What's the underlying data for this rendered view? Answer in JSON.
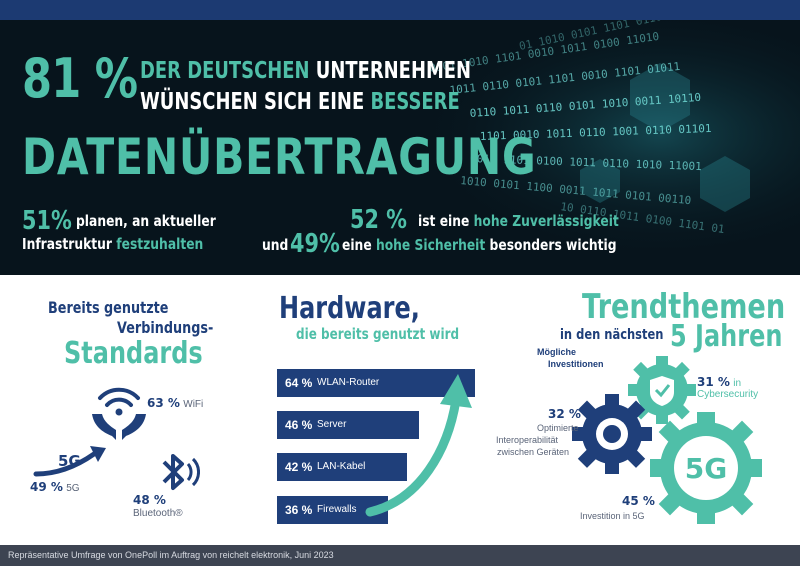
{
  "headline": {
    "percent": "81 %",
    "line1_a": "DER DEUTSCHEN",
    "line1_b": "UNTERNEHMEN",
    "line2_a": "WÜNSCHEN SICH EINE",
    "line2_b": "BESSERE",
    "line3": "DATENÜBERTRAGUNG"
  },
  "hero_stats": {
    "left": {
      "percent": "51%",
      "t1": "planen, an aktueller",
      "t2a": "Infrastruktur",
      "t2b": "festzuhalten"
    },
    "right": {
      "percent1": "52 %",
      "t1a": "ist eine",
      "t1b": "hohe Zuverlässigkeit",
      "and": "und",
      "percent2": "49%",
      "t2a": "eine",
      "t2b": "hohe Sicherheit",
      "t2c": "besonders wichtig"
    }
  },
  "standards": {
    "title1": "Bereits genutzte",
    "title2": "Verbindungs-",
    "title3": "Standards",
    "wifi": {
      "percent": "63 %",
      "label": "WiFi"
    },
    "fiveg": {
      "percent": "49 %",
      "label": "5G",
      "icon_text": "5G"
    },
    "bluetooth": {
      "percent": "48 %",
      "label": "Bluetooth®"
    }
  },
  "hardware": {
    "title": "Hardware,",
    "subtitle": "die bereits genutzt wird",
    "items": [
      {
        "percent": "64 %",
        "label": "WLAN-Router",
        "value": 64
      },
      {
        "percent": "46 %",
        "label": "Server",
        "value": 46
      },
      {
        "percent": "42 %",
        "label": "LAN-Kabel",
        "value": 42
      },
      {
        "percent": "36 %",
        "label": "Firewalls",
        "value": 36
      }
    ]
  },
  "trends": {
    "title1": "Trendthemen",
    "title2a": "in den nächsten",
    "title2b": "5 Jahren",
    "subtitle1": "Mögliche",
    "subtitle2": "Investitionen",
    "cyber": {
      "percent": "31 %",
      "l1": "in",
      "l2": "Cybersecurity"
    },
    "interop": {
      "percent": "32 %",
      "l1": "Optimierte",
      "l2": "Interoperabilität",
      "l3": "zwischen Geräten"
    },
    "fiveg": {
      "percent": "45 %",
      "label": "Investition in 5G",
      "icon_text": "5G"
    }
  },
  "footer": "Repräsentative Umfrage von OnePoll im Auftrag von reichelt elektronik, Juni 2023",
  "colors": {
    "navy": "#1f3f7a",
    "teal": "#4fbfa8",
    "dark": "#07141c",
    "footer": "#3d4452"
  },
  "icons": [
    "wifi-hands-icon",
    "fiveg-arrow-icon",
    "bluetooth-icon",
    "gear-shield-icon",
    "gear-icon",
    "gear-5g-icon",
    "growth-arrow-icon"
  ]
}
